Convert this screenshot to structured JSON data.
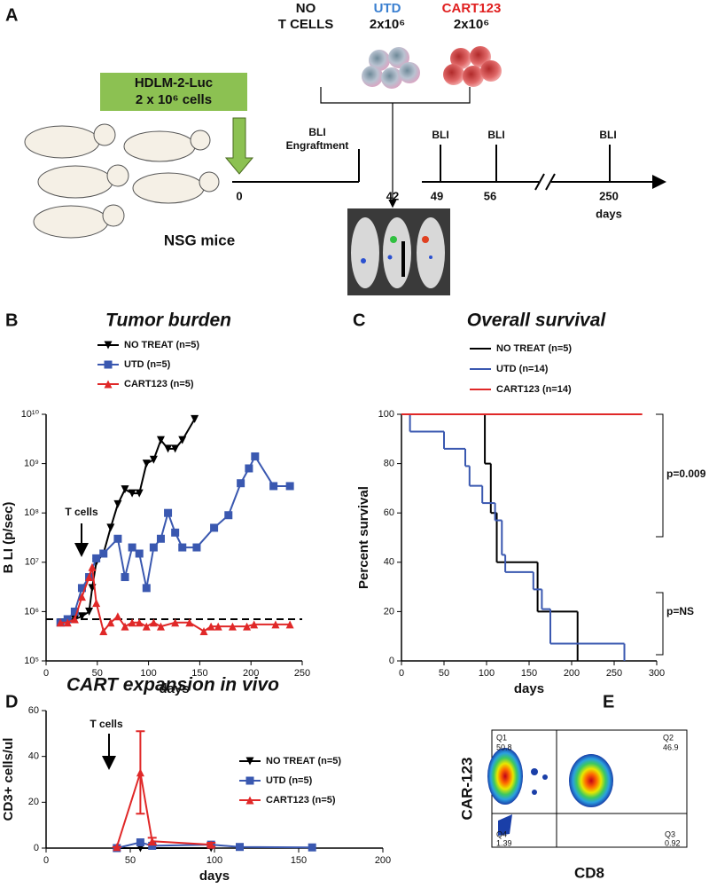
{
  "panel_labels": [
    "A",
    "B",
    "C",
    "D",
    "E"
  ],
  "schematic": {
    "groups": [
      {
        "line1": "NO",
        "line2": "T CELLS"
      },
      {
        "line1": "UTD",
        "line2": "2x10⁶"
      },
      {
        "line1": "CART123",
        "line2": "2x10⁶"
      }
    ],
    "cells": {
      "line1": "HDLM-2-Luc",
      "line2": "2 x 10⁶ cells"
    },
    "mice": "NSG mice",
    "bli_engraftment": [
      "BLI",
      "Engraftment"
    ],
    "bli_labels": [
      "BLI",
      "BLI",
      "BLI"
    ],
    "timeline": [
      "0",
      "42",
      "49",
      "56",
      "250"
    ],
    "timeline_unit": "days"
  },
  "chart_data": [
    {
      "type": "line",
      "title": "Tumor burden",
      "x_label": "days",
      "y_label": "B LI (p/sec)",
      "log_y": true,
      "xlim": [
        0,
        250
      ],
      "xticks": [
        0,
        50,
        100,
        150,
        200,
        250
      ],
      "ylim": [
        100000,
        10000000000
      ],
      "yticks": [
        {
          "value": 100000,
          "label": "10⁵"
        },
        {
          "value": 1000000,
          "label": "10⁶"
        },
        {
          "value": 10000000,
          "label": "10⁷"
        },
        {
          "value": 100000000,
          "label": "10⁸"
        },
        {
          "value": 1000000000,
          "label": "10⁹"
        },
        {
          "value": 10000000000,
          "label": "10¹⁰"
        }
      ],
      "reference_line": 700000,
      "annotations": [
        "T cells"
      ],
      "series": [
        {
          "name": "NO TREAT (n=5)",
          "color": "#000000",
          "marker": "triangle-down",
          "x": [
            14,
            21,
            28,
            35,
            42,
            45,
            49,
            56,
            63,
            70,
            77,
            84,
            91,
            98,
            105,
            112,
            119,
            126,
            133,
            145
          ],
          "values": [
            600000,
            700000,
            700000,
            800000,
            1000000,
            3000000,
            10000000,
            15000000,
            50000000,
            150000000,
            300000000,
            250000000,
            250000000,
            1000000000,
            1200000000,
            3000000000,
            2000000000,
            2000000000,
            3000000000,
            8000000000
          ]
        },
        {
          "name": "UTD (n=5)",
          "color": "#3a58b0",
          "marker": "square",
          "x": [
            14,
            21,
            28,
            35,
            42,
            49,
            56,
            70,
            77,
            84,
            91,
            98,
            105,
            112,
            119,
            126,
            133,
            147,
            164,
            178,
            190,
            198,
            204,
            222,
            238
          ],
          "values": [
            600000,
            700000,
            1000000,
            3000000,
            5000000,
            12000000,
            15000000,
            30000000,
            5000000,
            20000000,
            15000000,
            3000000,
            20000000,
            30000000,
            100000000,
            40000000,
            20000000,
            20000000,
            50000000,
            90000000,
            400000000,
            800000000,
            1400000000,
            350000000,
            350000000
          ]
        },
        {
          "name": "CART123 (n=5)",
          "color": "#e02828",
          "marker": "triangle",
          "x": [
            14,
            21,
            28,
            35,
            42,
            45,
            49,
            56,
            63,
            70,
            77,
            84,
            91,
            98,
            105,
            112,
            126,
            140,
            154,
            161,
            168,
            182,
            196,
            203,
            224,
            238
          ],
          "values": [
            600000,
            600000,
            700000,
            2000000,
            5000000,
            8000000,
            1500000,
            400000,
            600000,
            800000,
            500000,
            600000,
            600000,
            500000,
            600000,
            500000,
            600000,
            600000,
            400000,
            500000,
            500000,
            500000,
            500000,
            550000,
            550000,
            550000
          ]
        }
      ]
    },
    {
      "type": "line",
      "step": true,
      "title": "Overall survival",
      "x_label": "days",
      "y_label": "Percent survival",
      "xlim": [
        0,
        300
      ],
      "xticks": [
        0,
        50,
        100,
        150,
        200,
        250,
        300
      ],
      "ylim": [
        0,
        100
      ],
      "yticks": [
        0,
        20,
        40,
        60,
        80,
        100
      ],
      "annotations": [
        "p=0.009",
        "p=NS"
      ],
      "series": [
        {
          "name": "NO TREAT (n=5)",
          "color": "#000000",
          "x": [
            0,
            98,
            105,
            112,
            160,
            207
          ],
          "values": [
            100,
            80,
            60,
            40,
            20,
            0
          ]
        },
        {
          "name": "UTD (n=14)",
          "color": "#3a58b0",
          "x": [
            0,
            10,
            50,
            75,
            80,
            95,
            110,
            118,
            122,
            155,
            165,
            175,
            262
          ],
          "values": [
            100,
            93,
            86,
            79,
            71,
            64,
            57,
            43,
            36,
            29,
            21,
            7,
            0
          ]
        },
        {
          "name": "CART123 (n=14)",
          "color": "#e02828",
          "x": [
            0,
            283
          ],
          "values": [
            100,
            100
          ]
        }
      ]
    },
    {
      "type": "line",
      "title": "CART expansion in vivo",
      "x_label": "days",
      "y_label": "CD3+ cells/ul",
      "xlim": [
        0,
        200
      ],
      "xticks": [
        0,
        50,
        100,
        150,
        200
      ],
      "ylim": [
        0,
        60
      ],
      "yticks": [
        0,
        20,
        40,
        60
      ],
      "annotations": [
        "T cells"
      ],
      "series": [
        {
          "name": "NO TREAT (n=5)",
          "color": "#000000",
          "marker": "triangle-down",
          "x": [
            42,
            56,
            98
          ],
          "values": [
            0,
            0,
            0
          ]
        },
        {
          "name": "UTD (n=5)",
          "color": "#3a58b0",
          "marker": "square",
          "x": [
            42,
            56,
            63,
            98,
            115,
            158
          ],
          "values": [
            0,
            2.5,
            1,
            1.5,
            0.5,
            0.3
          ]
        },
        {
          "name": "CART123 (n=5)",
          "color": "#e02828",
          "marker": "triangle",
          "x": [
            42,
            56,
            63,
            98
          ],
          "values": [
            0.5,
            33,
            3,
            1.5
          ],
          "errors": [
            0,
            18,
            1.5,
            0.8
          ]
        }
      ]
    }
  ],
  "flow": {
    "quadrants": [
      {
        "name": "Q1",
        "value": "50.8"
      },
      {
        "name": "Q2",
        "value": "46.9"
      },
      {
        "name": "Q4",
        "value": "1.39"
      },
      {
        "name": "Q3",
        "value": "0.92"
      }
    ],
    "x_label": "CD8",
    "y_label": "CAR-123"
  }
}
